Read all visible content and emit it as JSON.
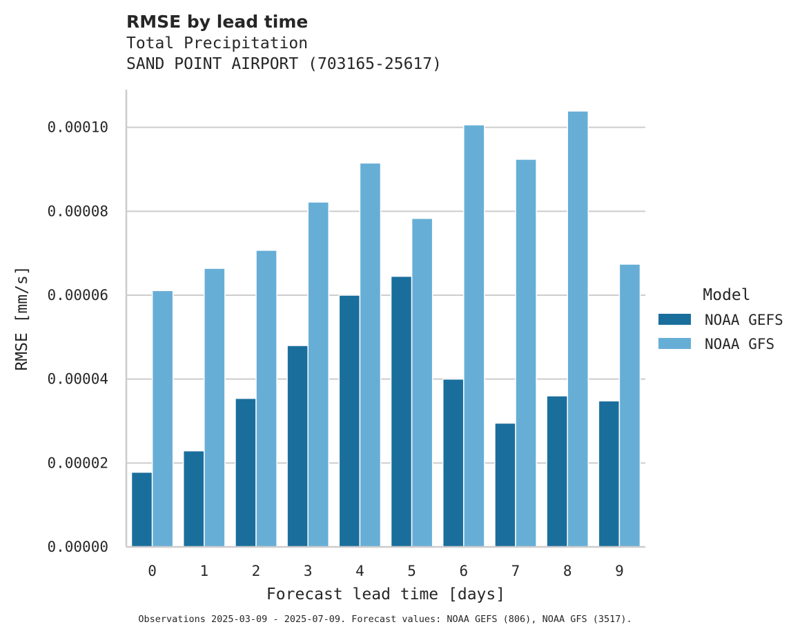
{
  "chart_data": {
    "type": "bar",
    "title": "RMSE by lead time",
    "subtitle_lines": [
      "Total Precipitation",
      "SAND POINT AIRPORT (703165-25617)"
    ],
    "xlabel": "Forecast lead time [days]",
    "ylabel": "RMSE [mm/s]",
    "categories": [
      "0",
      "1",
      "2",
      "3",
      "4",
      "5",
      "6",
      "7",
      "8",
      "9"
    ],
    "series": [
      {
        "name": "NOAA GEFS",
        "color": "#1a6e9c",
        "values": [
          1.78e-05,
          2.29e-05,
          3.54e-05,
          4.8e-05,
          6e-05,
          6.45e-05,
          4e-05,
          2.95e-05,
          3.6e-05,
          3.48e-05
        ]
      },
      {
        "name": "NOAA GFS",
        "color": "#67aed6",
        "values": [
          6.11e-05,
          6.64e-05,
          7.07e-05,
          8.22e-05,
          9.15e-05,
          7.83e-05,
          0.0001006,
          9.24e-05,
          0.0001039,
          6.74e-05
        ]
      }
    ],
    "ylim": [
      0,
      0.00010899
    ],
    "yticks": [
      0,
      2e-05,
      4e-05,
      6e-05,
      8e-05,
      0.0001
    ],
    "ytick_labels": [
      "0.00000",
      "0.00002",
      "0.00004",
      "0.00006",
      "0.00008",
      "0.00010"
    ],
    "grid": "horizontal",
    "legend": {
      "title": "Model",
      "position": "right"
    },
    "footnote": "Observations 2025-03-09 - 2025-07-09. Forecast values: NOAA GEFS (806), NOAA GFS (3517)."
  }
}
